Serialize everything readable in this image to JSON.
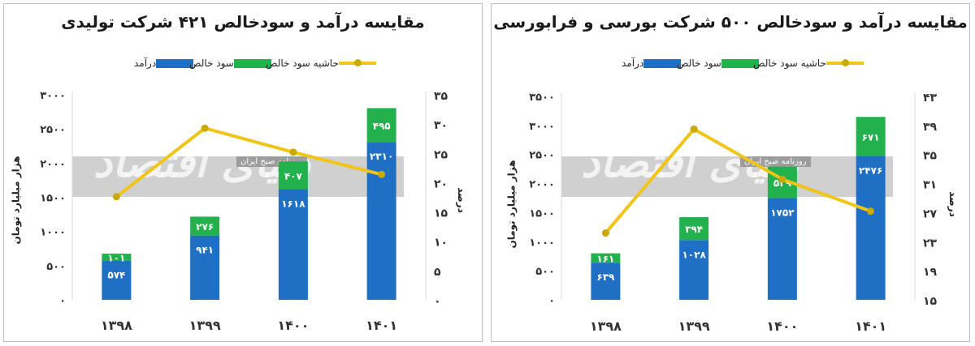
{
  "chart_data": [
    {
      "type": "bar",
      "title": "مقایسه درآمد و سودخالص ۴۲۱ شرکت تولیدی",
      "ylabel": "هزار میلیارد تومان",
      "y2label": "درصد",
      "categories": [
        "۱۳۹۸",
        "۱۳۹۹",
        "۱۴۰۰",
        "۱۴۰۱"
      ],
      "stacked": true,
      "series": [
        {
          "name": "درآمد",
          "values": [
            574,
            941,
            1618,
            2310
          ],
          "labels": [
            "۵۷۴",
            "۹۴۱",
            "۱۶۱۸",
            "۲۳۱۰"
          ],
          "color": "#1f6fc5"
        },
        {
          "name": "سود خالص",
          "values": [
            101,
            276,
            407,
            495
          ],
          "labels": [
            "۱۰۱",
            "۲۷۶",
            "۴۰۷",
            "۴۹۵"
          ],
          "color": "#22b14c"
        },
        {
          "name": "حاشیه سود خالص",
          "type": "line",
          "axis": "secondary",
          "values": [
            17.6,
            29.3,
            25.2,
            21.4
          ],
          "color": "#f0c419"
        }
      ],
      "ylim": [
        0,
        3000
      ],
      "y_ticks": [
        0,
        500,
        1000,
        1500,
        2000,
        2500,
        3000
      ],
      "y_tick_labels": [
        "۰",
        "۵۰۰",
        "۱۰۰۰",
        "۱۵۰۰",
        "۲۰۰۰",
        "۲۵۰۰",
        "۳۰۰۰"
      ],
      "y2lim": [
        0,
        35
      ],
      "y2_ticks": [
        0,
        5,
        10,
        15,
        20,
        25,
        30,
        35
      ],
      "y2_tick_labels": [
        "۰",
        "۵",
        "۱۰",
        "۱۵",
        "۲۰",
        "۲۵",
        "۳۰",
        "۳۵"
      ],
      "legend_position": "top"
    },
    {
      "type": "bar",
      "title": "مقایسه درآمد و سودخالص ۵۰۰ شرکت بورسی و فرابورسی",
      "ylabel": "هزار میلیارد تومان",
      "y2label": "درصد",
      "categories": [
        "۱۳۹۸",
        "۱۳۹۹",
        "۱۴۰۰",
        "۱۴۰۱"
      ],
      "stacked": true,
      "series": [
        {
          "name": "درآمد",
          "values": [
            639,
            1028,
            1752,
            2476
          ],
          "labels": [
            "۶۳۹",
            "۱۰۲۸",
            "۱۷۵۲",
            "۲۴۷۶"
          ],
          "color": "#1f6fc5"
        },
        {
          "name": "سود خالص",
          "values": [
            161,
            394,
            539,
            671
          ],
          "labels": [
            "۱۶۱",
            "۳۹۴",
            "۵۳۹",
            "۶۷۱"
          ],
          "color": "#22b14c"
        },
        {
          "name": "حاشیه سود خالص",
          "type": "line",
          "axis": "secondary",
          "values": [
            24.2,
            38.5,
            31.6,
            27.2
          ],
          "color": "#f0c419"
        }
      ],
      "ylim": [
        0,
        3500
      ],
      "y_ticks": [
        0,
        500,
        1000,
        1500,
        2000,
        2500,
        3000,
        3500
      ],
      "y_tick_labels": [
        "۰",
        "۵۰۰",
        "۱۰۰۰",
        "۱۵۰۰",
        "۲۰۰۰",
        "۲۵۰۰",
        "۳۰۰۰",
        "۳۵۰۰"
      ],
      "y2lim": [
        15,
        43
      ],
      "y2_ticks": [
        15,
        19,
        23,
        27,
        31,
        35,
        39,
        43
      ],
      "y2_tick_labels": [
        "۱۵",
        "۱۹",
        "۲۳",
        "۲۷",
        "۳۱",
        "۳۵",
        "۳۹",
        "۴۳"
      ],
      "legend_position": "top"
    }
  ],
  "watermark": {
    "main": "دنیای اقتصاد",
    "sub": "روزنامه صبح ایران"
  },
  "colors": {
    "revenue": "#1f6fc5",
    "profit": "#22b14c",
    "margin": "#f0c419",
    "margin_marker": "#caa900"
  }
}
